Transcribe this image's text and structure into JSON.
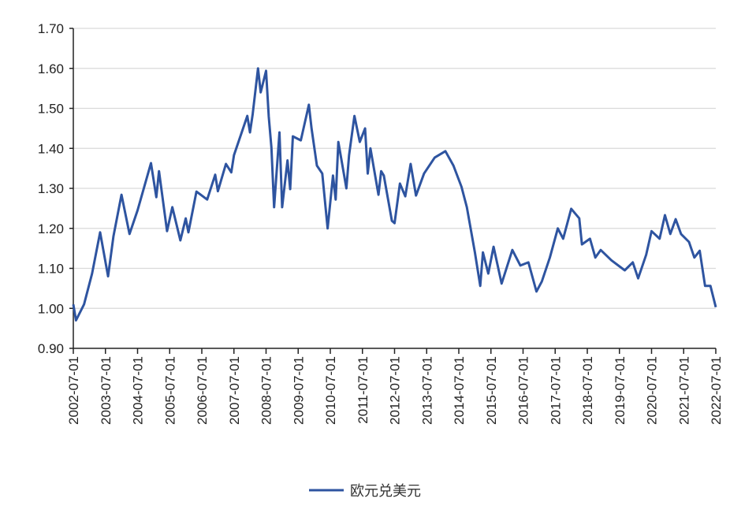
{
  "chart_data": {
    "type": "line",
    "title": "",
    "xlabel": "",
    "ylabel": "",
    "ylim": [
      0.9,
      1.7
    ],
    "xlim": [
      "2002-07-01",
      "2022-07-01"
    ],
    "grid": "horizontal",
    "legend_placement": "bottom",
    "y_ticks": [
      "0.90",
      "1.00",
      "1.10",
      "1.20",
      "1.30",
      "1.40",
      "1.50",
      "1.60",
      "1.70"
    ],
    "x_ticks": [
      "2002-07-01",
      "2003-07-01",
      "2004-07-01",
      "2005-07-01",
      "2006-07-01",
      "2007-07-01",
      "2008-07-01",
      "2009-07-01",
      "2010-07-01",
      "2011-07-01",
      "2012-07-01",
      "2013-07-01",
      "2014-07-01",
      "2015-07-01",
      "2016-07-01",
      "2017-07-01",
      "2018-07-01",
      "2019-07-01",
      "2020-07-01",
      "2021-07-01",
      "2022-07-01"
    ],
    "series": [
      {
        "name": "欧元兑美元",
        "color": "#2e54a0",
        "points": [
          [
            "2002-07",
            1.01
          ],
          [
            "2002-08",
            0.97
          ],
          [
            "2002-11",
            1.01
          ],
          [
            "2003-02",
            1.087
          ],
          [
            "2003-05",
            1.19
          ],
          [
            "2003-08",
            1.08
          ],
          [
            "2003-10",
            1.18
          ],
          [
            "2004-01",
            1.284
          ],
          [
            "2004-04",
            1.186
          ],
          [
            "2004-07",
            1.245
          ],
          [
            "2004-12",
            1.363
          ],
          [
            "2005-02",
            1.278
          ],
          [
            "2005-03",
            1.343
          ],
          [
            "2005-06",
            1.193
          ],
          [
            "2005-08",
            1.253
          ],
          [
            "2005-11",
            1.17
          ],
          [
            "2006-01",
            1.225
          ],
          [
            "2006-02",
            1.19
          ],
          [
            "2006-05",
            1.292
          ],
          [
            "2006-09",
            1.272
          ],
          [
            "2006-12",
            1.334
          ],
          [
            "2007-01",
            1.293
          ],
          [
            "2007-04",
            1.361
          ],
          [
            "2007-06",
            1.34
          ],
          [
            "2007-07",
            1.383
          ],
          [
            "2007-12",
            1.481
          ],
          [
            "2008-01",
            1.44
          ],
          [
            "2008-02",
            1.485
          ],
          [
            "2008-04",
            1.6
          ],
          [
            "2008-05",
            1.54
          ],
          [
            "2008-07",
            1.594
          ],
          [
            "2008-08",
            1.48
          ],
          [
            "2008-09",
            1.402
          ],
          [
            "2008-10",
            1.253
          ],
          [
            "2008-12",
            1.44
          ],
          [
            "2009-01",
            1.253
          ],
          [
            "2009-03",
            1.37
          ],
          [
            "2009-04",
            1.298
          ],
          [
            "2009-05",
            1.43
          ],
          [
            "2009-08",
            1.42
          ],
          [
            "2009-11",
            1.509
          ],
          [
            "2009-12",
            1.45
          ],
          [
            "2010-02",
            1.357
          ],
          [
            "2010-04",
            1.337
          ],
          [
            "2010-06",
            1.2
          ],
          [
            "2010-08",
            1.332
          ],
          [
            "2010-09",
            1.272
          ],
          [
            "2010-10",
            1.416
          ],
          [
            "2011-01",
            1.3
          ],
          [
            "2011-02",
            1.383
          ],
          [
            "2011-04",
            1.481
          ],
          [
            "2011-06",
            1.416
          ],
          [
            "2011-08",
            1.45
          ],
          [
            "2011-09",
            1.337
          ],
          [
            "2011-10",
            1.4
          ],
          [
            "2012-01",
            1.284
          ],
          [
            "2012-02",
            1.343
          ],
          [
            "2012-03",
            1.332
          ],
          [
            "2012-06",
            1.219
          ],
          [
            "2012-07",
            1.213
          ],
          [
            "2012-09",
            1.312
          ],
          [
            "2012-11",
            1.28
          ],
          [
            "2013-01",
            1.361
          ],
          [
            "2013-03",
            1.282
          ],
          [
            "2013-06",
            1.337
          ],
          [
            "2013-10",
            1.377
          ],
          [
            "2014-02",
            1.393
          ],
          [
            "2014-05",
            1.357
          ],
          [
            "2014-08",
            1.304
          ],
          [
            "2014-10",
            1.253
          ],
          [
            "2015-01",
            1.14
          ],
          [
            "2015-03",
            1.056
          ],
          [
            "2015-04",
            1.14
          ],
          [
            "2015-06",
            1.087
          ],
          [
            "2015-08",
            1.154
          ],
          [
            "2015-11",
            1.062
          ],
          [
            "2016-03",
            1.146
          ],
          [
            "2016-06",
            1.107
          ],
          [
            "2016-09",
            1.115
          ],
          [
            "2016-12",
            1.042
          ],
          [
            "2017-02",
            1.067
          ],
          [
            "2017-05",
            1.127
          ],
          [
            "2017-08",
            1.2
          ],
          [
            "2017-10",
            1.174
          ],
          [
            "2018-01",
            1.249
          ],
          [
            "2018-04",
            1.225
          ],
          [
            "2018-05",
            1.16
          ],
          [
            "2018-08",
            1.174
          ],
          [
            "2018-10",
            1.127
          ],
          [
            "2018-12",
            1.146
          ],
          [
            "2019-04",
            1.12
          ],
          [
            "2019-09",
            1.095
          ],
          [
            "2019-12",
            1.115
          ],
          [
            "2020-02",
            1.075
          ],
          [
            "2020-05",
            1.134
          ],
          [
            "2020-07",
            1.193
          ],
          [
            "2020-10",
            1.174
          ],
          [
            "2020-12",
            1.233
          ],
          [
            "2021-02",
            1.186
          ],
          [
            "2021-04",
            1.223
          ],
          [
            "2021-06",
            1.186
          ],
          [
            "2021-09",
            1.166
          ],
          [
            "2021-11",
            1.127
          ],
          [
            "2022-01",
            1.144
          ],
          [
            "2022-03",
            1.056
          ],
          [
            "2022-05",
            1.056
          ],
          [
            "2022-07",
            1.003
          ]
        ]
      }
    ]
  }
}
